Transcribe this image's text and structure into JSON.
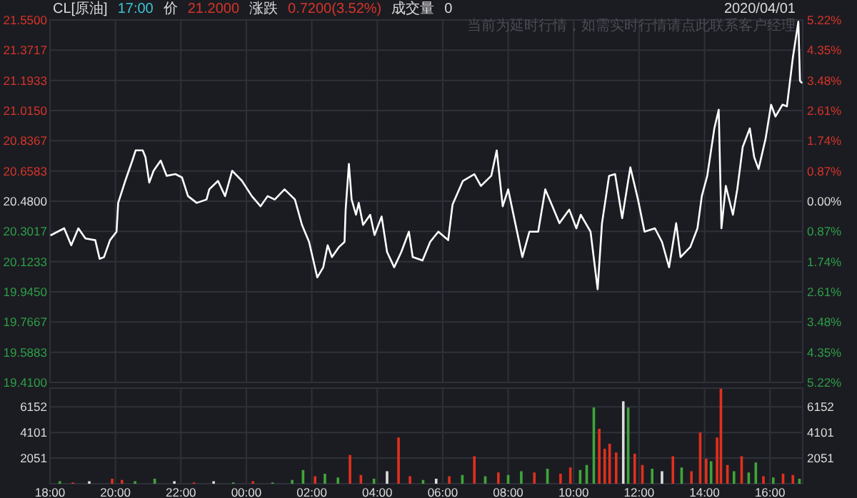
{
  "chart_data": [
    {
      "type": "line",
      "title": "CL[原油]",
      "annotations": [
        "17:00",
        "价",
        "21.2000",
        "涨跌",
        "0.7200(3.52%)",
        "成交量",
        "0",
        "2020/04/01",
        "当前为延时行情，如需实时行情请点此联系客户经理"
      ],
      "x": [
        "2020-03-31T18:02",
        "2020-03-31T18:26",
        "2020-03-31T18:39",
        "2020-03-31T18:52",
        "2020-03-31T19:05",
        "2020-03-31T19:23",
        "2020-03-31T19:31",
        "2020-03-31T19:39",
        "2020-03-31T19:50",
        "2020-03-31T20:02",
        "2020-03-31T20:05",
        "2020-03-31T20:18",
        "2020-03-31T20:31",
        "2020-03-31T20:37",
        "2020-03-31T20:50",
        "2020-03-31T20:55",
        "2020-03-31T21:02",
        "2020-03-31T21:10",
        "2020-03-31T21:23",
        "2020-03-31T21:34",
        "2020-03-31T21:50",
        "2020-03-31T22:02",
        "2020-03-31T22:13",
        "2020-03-31T22:29",
        "2020-03-31T22:47",
        "2020-03-31T22:52",
        "2020-03-31T23:08",
        "2020-03-31T23:21",
        "2020-03-31T23:34",
        "2020-03-31T23:52",
        "2020-04-01T00:10",
        "2020-04-01T00:26",
        "2020-04-01T00:39",
        "2020-04-01T00:52",
        "2020-04-01T01:10",
        "2020-04-01T01:29",
        "2020-04-01T01:42",
        "2020-04-01T01:55",
        "2020-04-01T02:10",
        "2020-04-01T02:21",
        "2020-04-01T02:29",
        "2020-04-01T02:37",
        "2020-04-01T02:50",
        "2020-04-01T03:00",
        "2020-04-01T03:02",
        "2020-04-01T03:08",
        "2020-04-01T03:13",
        "2020-04-01T03:21",
        "2020-04-01T03:26",
        "2020-04-01T03:34",
        "2020-04-01T03:47",
        "2020-04-01T03:55",
        "2020-04-01T04:08",
        "2020-04-01T04:18",
        "2020-04-01T04:31",
        "2020-04-01T04:44",
        "2020-04-01T04:58",
        "2020-04-01T05:05",
        "2020-04-01T05:23",
        "2020-04-01T05:37",
        "2020-04-01T05:52",
        "2020-04-01T06:10",
        "2020-04-01T06:18",
        "2020-04-01T06:37",
        "2020-04-01T06:58",
        "2020-04-01T07:10",
        "2020-04-01T07:29",
        "2020-04-01T07:39",
        "2020-04-01T07:50",
        "2020-04-01T08:00",
        "2020-04-01T08:13",
        "2020-04-01T08:26",
        "2020-04-01T08:39",
        "2020-04-01T08:55",
        "2020-04-01T09:08",
        "2020-04-01T09:21",
        "2020-04-01T09:34",
        "2020-04-01T09:52",
        "2020-04-01T10:05",
        "2020-04-01T10:13",
        "2020-04-01T10:31",
        "2020-04-01T10:44",
        "2020-04-01T10:52",
        "2020-04-01T11:05",
        "2020-04-01T11:16",
        "2020-04-01T11:29",
        "2020-04-01T11:44",
        "2020-04-01T11:58",
        "2020-04-01T12:10",
        "2020-04-01T12:29",
        "2020-04-01T12:42",
        "2020-04-01T12:55",
        "2020-04-01T13:08",
        "2020-04-01T13:16",
        "2020-04-01T13:34",
        "2020-04-01T13:47",
        "2020-04-01T13:55",
        "2020-04-01T14:05",
        "2020-04-01T14:18",
        "2020-04-01T14:26",
        "2020-04-01T14:31",
        "2020-04-01T14:39",
        "2020-04-01T14:52",
        "2020-04-01T15:00",
        "2020-04-01T15:10",
        "2020-04-01T15:23",
        "2020-04-01T15:31",
        "2020-04-01T15:39",
        "2020-04-01T15:52",
        "2020-04-01T16:02",
        "2020-04-01T16:10",
        "2020-04-01T16:23",
        "2020-04-01T16:31",
        "2020-04-01T16:42",
        "2020-04-01T16:52",
        "2020-04-01T16:55",
        "2020-04-01T16:58"
      ],
      "series": [
        {
          "color": "#ffffff",
          "values": [
            20.28,
            20.32,
            20.22,
            20.32,
            20.26,
            20.25,
            20.14,
            20.15,
            20.25,
            20.3,
            20.47,
            20.6,
            20.72,
            20.78,
            20.78,
            20.74,
            20.59,
            20.66,
            20.72,
            20.63,
            20.64,
            20.62,
            20.51,
            20.47,
            20.49,
            20.55,
            20.6,
            20.51,
            20.66,
            20.6,
            20.51,
            20.45,
            20.51,
            20.49,
            20.55,
            20.49,
            20.34,
            20.24,
            20.03,
            20.09,
            20.22,
            20.15,
            20.21,
            20.24,
            20.43,
            20.7,
            20.49,
            20.4,
            20.47,
            20.34,
            20.4,
            20.28,
            20.39,
            20.18,
            20.09,
            20.18,
            20.3,
            20.15,
            20.13,
            20.24,
            20.3,
            20.25,
            20.46,
            20.6,
            20.64,
            20.57,
            20.63,
            20.78,
            20.45,
            20.55,
            20.35,
            20.15,
            20.3,
            20.3,
            20.55,
            20.45,
            20.35,
            20.43,
            20.32,
            20.4,
            20.3,
            19.96,
            20.35,
            20.63,
            20.64,
            20.38,
            20.68,
            20.49,
            20.3,
            20.32,
            20.24,
            20.09,
            20.35,
            20.15,
            20.21,
            20.32,
            20.51,
            20.63,
            20.91,
            21.02,
            20.32,
            20.57,
            20.4,
            20.55,
            20.8,
            20.91,
            20.74,
            20.67,
            20.85,
            21.05,
            20.98,
            21.05,
            21.04,
            21.33,
            21.54,
            21.19,
            21.18
          ]
        }
      ],
      "xlim": [
        "2020-03-31T18:00",
        "2020-04-01T17:00"
      ],
      "xticks": [
        {
          "value": "2020-03-31T18:00",
          "label": null
        },
        {
          "value": "2020-03-31T20:00",
          "label": null
        },
        {
          "value": "2020-03-31T22:00",
          "label": null
        },
        {
          "value": "2020-04-01T00:00",
          "label": null
        },
        {
          "value": "2020-04-01T02:00",
          "label": null
        },
        {
          "value": "2020-04-01T04:00",
          "label": null
        },
        {
          "value": "2020-04-01T06:00",
          "label": null
        },
        {
          "value": "2020-04-01T08:00",
          "label": null
        },
        {
          "value": "2020-04-01T10:00",
          "label": null
        },
        {
          "value": "2020-04-01T12:00",
          "label": null
        },
        {
          "value": "2020-04-01T14:00",
          "label": null
        },
        {
          "value": "2020-04-01T16:00",
          "label": null
        }
      ],
      "ylim": [
        19.41,
        21.55
      ],
      "yticks": [
        {
          "value": 21.55,
          "label": "21.5500"
        },
        {
          "value": 21.3717,
          "label": "21.3717"
        },
        {
          "value": 21.1933,
          "label": "21.1933"
        },
        {
          "value": 21.015,
          "label": "21.0150"
        },
        {
          "value": 20.8367,
          "label": "20.8367"
        },
        {
          "value": 20.6583,
          "label": "20.6583"
        },
        {
          "value": 20.48,
          "label": "20.4800"
        },
        {
          "value": 20.3017,
          "label": "20.3017"
        },
        {
          "value": 20.1233,
          "label": "20.1233"
        },
        {
          "value": 19.945,
          "label": "19.9450"
        },
        {
          "value": 19.7667,
          "label": "19.7667"
        },
        {
          "value": 19.5883,
          "label": "19.5883"
        },
        {
          "value": 19.41,
          "label": "19.4100"
        }
      ],
      "y2lim": [
        -5.22,
        5.22
      ],
      "y2ticks": [
        {
          "value": 5.22,
          "label": "5.22%"
        },
        {
          "value": 4.35,
          "label": "4.35%"
        },
        {
          "value": 3.48,
          "label": "3.48%"
        },
        {
          "value": 2.61,
          "label": "2.61%"
        },
        {
          "value": 1.74,
          "label": "1.74%"
        },
        {
          "value": 0.87,
          "label": "0.87%"
        },
        {
          "value": 0,
          "label": "0.00%"
        },
        {
          "value": -0.87,
          "label": "0.87%"
        },
        {
          "value": -1.74,
          "label": "1.74%"
        },
        {
          "value": -2.61,
          "label": "2.61%"
        },
        {
          "value": -3.48,
          "label": "3.48%"
        },
        {
          "value": -4.35,
          "label": "4.35%"
        },
        {
          "value": -5.22,
          "label": "5.22%"
        }
      ],
      "grid": true,
      "tick_labels": "y"
    },
    {
      "type": "bar",
      "x": [
        "2020-03-31T18:18",
        "2020-03-31T18:42",
        "2020-03-31T19:12",
        "2020-03-31T19:54",
        "2020-03-31T20:12",
        "2020-03-31T20:36",
        "2020-03-31T21:12",
        "2020-03-31T21:48",
        "2020-03-31T22:24",
        "2020-03-31T23:00",
        "2020-03-31T23:36",
        "2020-04-01T00:12",
        "2020-04-01T00:48",
        "2020-04-01T01:24",
        "2020-04-01T01:44",
        "2020-04-01T02:06",
        "2020-04-01T02:24",
        "2020-04-01T02:48",
        "2020-04-01T03:10",
        "2020-04-01T03:30",
        "2020-04-01T03:54",
        "2020-04-01T04:18",
        "2020-04-01T04:39",
        "2020-04-01T05:00",
        "2020-04-01T05:24",
        "2020-04-01T05:48",
        "2020-04-01T06:12",
        "2020-04-01T06:36",
        "2020-04-01T06:58",
        "2020-04-01T07:18",
        "2020-04-01T07:42",
        "2020-04-01T08:00",
        "2020-04-01T08:24",
        "2020-04-01T08:48",
        "2020-04-01T09:12",
        "2020-04-01T09:36",
        "2020-04-01T09:54",
        "2020-04-01T10:12",
        "2020-04-01T10:24",
        "2020-04-01T10:37",
        "2020-04-01T10:47",
        "2020-04-01T10:57",
        "2020-04-01T11:06",
        "2020-04-01T11:18",
        "2020-04-01T11:31",
        "2020-04-01T11:40",
        "2020-04-01T11:52",
        "2020-04-01T12:06",
        "2020-04-01T12:24",
        "2020-04-01T12:42",
        "2020-04-01T13:02",
        "2020-04-01T13:18",
        "2020-04-01T13:36",
        "2020-04-01T13:52",
        "2020-04-01T14:03",
        "2020-04-01T14:12",
        "2020-04-01T14:23",
        "2020-04-01T14:30",
        "2020-04-01T14:42",
        "2020-04-01T14:54",
        "2020-04-01T15:08",
        "2020-04-01T15:21",
        "2020-04-01T15:34",
        "2020-04-01T15:48",
        "2020-04-01T16:06",
        "2020-04-01T16:24",
        "2020-04-01T16:42",
        "2020-04-01T16:54"
      ],
      "values": [
        200,
        100,
        200,
        400,
        300,
        200,
        400,
        200,
        100,
        200,
        100,
        200,
        100,
        300,
        1100,
        600,
        800,
        500,
        2300,
        700,
        400,
        1000,
        3700,
        600,
        300,
        400,
        600,
        700,
        2200,
        600,
        900,
        700,
        1000,
        900,
        1200,
        800,
        1300,
        1100,
        1500,
        6100,
        4400,
        2800,
        3200,
        2500,
        6600,
        6100,
        2400,
        1500,
        1200,
        1000,
        2200,
        1300,
        1000,
        4100,
        2000,
        1800,
        3700,
        7600,
        1500,
        1000,
        2200,
        900,
        1700,
        600,
        500,
        800,
        700,
        400
      ],
      "colors": [
        "#3fa63a",
        "#e0301e",
        "#dddddd",
        "#e0301e",
        "#e0301e",
        "#3fa63a",
        "#3fa63a",
        "#dddddd",
        "#e0301e",
        "#dddddd",
        "#3fa63a",
        "#e0301e",
        "#3fa63a",
        "#3fa63a",
        "#3fa63a",
        "#e0301e",
        "#3fa63a",
        "#3fa63a",
        "#e0301e",
        "#e0301e",
        "#3fa63a",
        "#dddddd",
        "#e0301e",
        "#e0301e",
        "#3fa63a",
        "#dddddd",
        "#e0301e",
        "#3fa63a",
        "#e0301e",
        "#3fa63a",
        "#e0301e",
        "#3fa63a",
        "#3fa63a",
        "#e0301e",
        "#3fa63a",
        "#e0301e",
        "#e0301e",
        "#3fa63a",
        "#3fa63a",
        "#3fa63a",
        "#e0301e",
        "#e0301e",
        "#e0301e",
        "#e0301e",
        "#dddddd",
        "#3fa63a",
        "#e0301e",
        "#e0301e",
        "#3fa63a",
        "#dddddd",
        "#e0301e",
        "#3fa63a",
        "#e0301e",
        "#e0301e",
        "#e0301e",
        "#3fa63a",
        "#e0301e",
        "#e0301e",
        "#e0301e",
        "#3fa63a",
        "#e0301e",
        "#3fa63a",
        "#3fa63a",
        "#e0301e",
        "#3fa63a",
        "#e0301e",
        "#e0301e",
        "#3fa63a"
      ],
      "xlim": [
        "2020-03-31T18:00",
        "2020-04-01T17:00"
      ],
      "xticks": [
        {
          "value": "2020-03-31T18:00",
          "label": "18:00"
        },
        {
          "value": "2020-03-31T20:00",
          "label": "20:00"
        },
        {
          "value": "2020-03-31T22:00",
          "label": "22:00"
        },
        {
          "value": "2020-04-01T00:00",
          "label": "00:00"
        },
        {
          "value": "2020-04-01T02:00",
          "label": "02:00"
        },
        {
          "value": "2020-04-01T04:00",
          "label": "04:00"
        },
        {
          "value": "2020-04-01T06:00",
          "label": "06:00"
        },
        {
          "value": "2020-04-01T08:00",
          "label": "08:00"
        },
        {
          "value": "2020-04-01T10:00",
          "label": "10:00"
        },
        {
          "value": "2020-04-01T12:00",
          "label": "12:00"
        },
        {
          "value": "2020-04-01T14:00",
          "label": "14:00"
        },
        {
          "value": "2020-04-01T16:00",
          "label": "16:00"
        }
      ],
      "ylim": [
        0,
        7650
      ],
      "yticks": [
        2051,
        4101,
        6152
      ],
      "y2lim": [
        0,
        7650
      ],
      "y2ticks": [
        2051,
        4101,
        6152
      ],
      "grid": true
    }
  ]
}
